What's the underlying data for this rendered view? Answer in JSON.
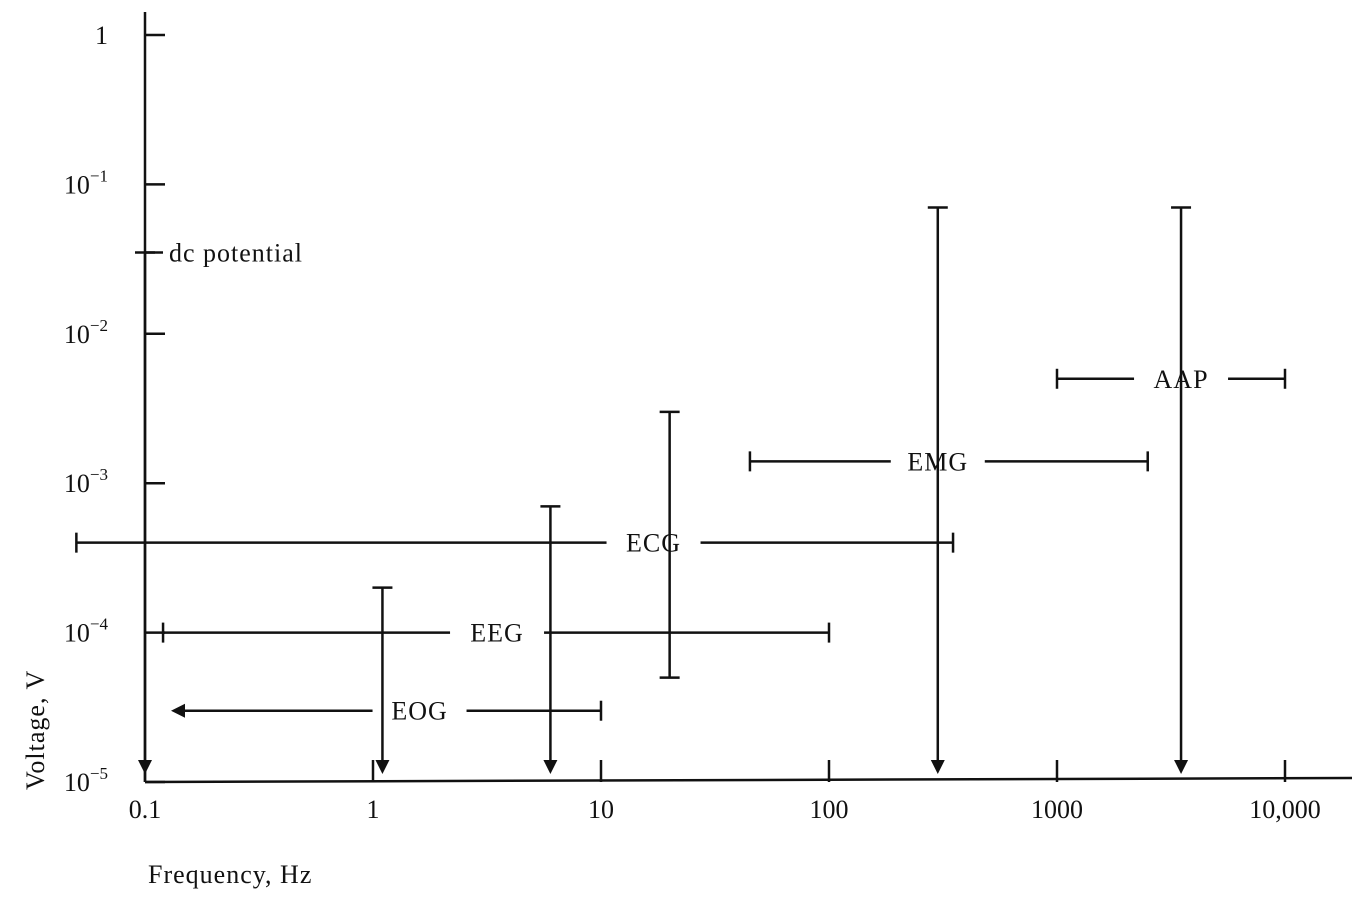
{
  "chart_data": {
    "type": "range-chart",
    "x_scale": "log",
    "y_scale": "log",
    "xlabel": "Frequency, Hz",
    "ylabel": "Voltage, V",
    "xlim": [
      0.1,
      10000
    ],
    "ylim": [
      1e-05,
      1
    ],
    "x_ticks": [
      {
        "value": 0.1,
        "label": "0.1"
      },
      {
        "value": 1,
        "label": "1"
      },
      {
        "value": 10,
        "label": "10"
      },
      {
        "value": 100,
        "label": "100"
      },
      {
        "value": 1000,
        "label": "1000"
      },
      {
        "value": 10000,
        "label": "10,000"
      }
    ],
    "y_ticks": [
      {
        "value": 1,
        "base": "1",
        "exp": ""
      },
      {
        "value": 0.1,
        "base": "10",
        "exp": "−1"
      },
      {
        "value": 0.01,
        "base": "10",
        "exp": "−2"
      },
      {
        "value": 0.001,
        "base": "10",
        "exp": "−3"
      },
      {
        "value": 0.0001,
        "base": "10",
        "exp": "−4"
      },
      {
        "value": 1e-05,
        "base": "10",
        "exp": "−5"
      }
    ],
    "series": [
      {
        "name": "dc potential",
        "x_range": null,
        "y_range": [
          1e-05,
          0.035
        ],
        "x_at": 0.1,
        "y_open_low": true
      },
      {
        "name": "EOG",
        "x_range": [
          0.1,
          10
        ],
        "y_range": [
          1e-05,
          0.0002
        ],
        "x_open_low": true,
        "y_open_low": true,
        "x_at": 1.1,
        "y_at": 3e-05
      },
      {
        "name": "EEG",
        "x_range": [
          0.12,
          100
        ],
        "y_range": [
          1e-05,
          0.0007
        ],
        "y_open_low": true,
        "x_at": 6,
        "y_at": 0.0001
      },
      {
        "name": "ECG",
        "x_range": [
          0.05,
          350
        ],
        "y_range": [
          5e-05,
          0.003
        ],
        "x_at": 20,
        "y_at": 0.0004
      },
      {
        "name": "EMG",
        "x_range": [
          45,
          2500
        ],
        "y_range": [
          1e-05,
          0.07
        ],
        "y_open_low": true,
        "x_at": 300,
        "y_at": 0.0014
      },
      {
        "name": "AAP",
        "x_range": [
          1000,
          10000
        ],
        "y_range": [
          1e-05,
          0.07
        ],
        "y_open_low": true,
        "x_at": 3500,
        "y_at": 0.005
      }
    ],
    "grid": false,
    "legend": "none"
  }
}
